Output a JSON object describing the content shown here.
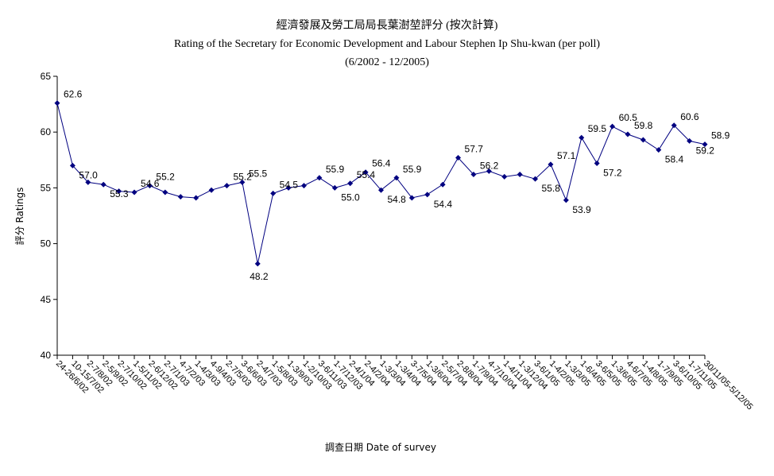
{
  "chart_data": {
    "type": "line",
    "title": "經濟發展及勞工局局長葉澍堃評分 (按次計算)",
    "subtitle": "Rating of the Secretary for Economic Development and Labour Stephen Ip Shu-kwan  (per poll)",
    "period": "(6/2002 - 12/2005)",
    "xlabel": "調查日期 Date of survey",
    "ylabel": "評分 Ratings",
    "ylim": [
      40,
      65
    ],
    "yticks": [
      40,
      45,
      50,
      55,
      60,
      65
    ],
    "grid": false,
    "legend": "none",
    "line_color": "#000080",
    "categories": [
      "24-26/6/02",
      "10-15/7/02",
      "2-7/8/02",
      "2-5/9/02",
      "2-7/10/02",
      "1-5/11/02",
      "2-6/12/02",
      "2-7/1/03",
      "4-7/2/03",
      "1-4/3/03",
      "4-9/4/03",
      "2-7/5/03",
      "3-6/6/03",
      "2-4/7/03",
      "1-5/8/03",
      "1-3/9/03",
      "1-2/10/03",
      "3-6/11/03",
      "1-7/12/03",
      "2-4/1/04",
      "2-4/2/04",
      "1-3/3/04",
      "1-3/4/04",
      "3-7/5/04",
      "1-3/6/04",
      "2-5/7/04",
      "2-8/8/04",
      "1-7/9/04",
      "4-7/10/04",
      "1-4/11/04",
      "1-3/12/04",
      "3-6/1/05",
      "1-4/2/05",
      "1-3/3/05",
      "1-6/4/05",
      "3-6/5/05",
      "1-3/6/05",
      "4-6/7/05",
      "1-4/8/05",
      "1-7/9/05",
      "3-6/10/05",
      "1-7/11/05",
      "30/11/05-5/12/05"
    ],
    "values": [
      62.6,
      57.0,
      55.5,
      55.3,
      54.7,
      54.6,
      55.2,
      54.6,
      54.2,
      54.1,
      54.8,
      55.2,
      55.5,
      48.2,
      54.5,
      55.0,
      55.2,
      55.9,
      55.0,
      55.4,
      56.4,
      54.8,
      55.9,
      54.1,
      54.4,
      55.3,
      57.7,
      56.2,
      56.5,
      56.0,
      56.2,
      55.8,
      57.1,
      53.9,
      59.5,
      57.2,
      60.5,
      59.8,
      59.3,
      58.4,
      60.6,
      59.2,
      58.9
    ],
    "data_labels": [
      {
        "i": 0,
        "text": "62.6"
      },
      {
        "i": 1,
        "text": "57.0"
      },
      {
        "i": 3,
        "text": "55.3"
      },
      {
        "i": 5,
        "text": "54.6"
      },
      {
        "i": 6,
        "text": "55.2"
      },
      {
        "i": 11,
        "text": "55.2"
      },
      {
        "i": 12,
        "text": "55.5"
      },
      {
        "i": 13,
        "text": "48.2"
      },
      {
        "i": 14,
        "text": "54.5"
      },
      {
        "i": 17,
        "text": "55.9"
      },
      {
        "i": 18,
        "text": "55.0"
      },
      {
        "i": 19,
        "text": "55.4"
      },
      {
        "i": 20,
        "text": "56.4"
      },
      {
        "i": 21,
        "text": "54.8"
      },
      {
        "i": 22,
        "text": "55.9"
      },
      {
        "i": 24,
        "text": "54.4"
      },
      {
        "i": 26,
        "text": "57.7"
      },
      {
        "i": 27,
        "text": "56.2"
      },
      {
        "i": 31,
        "text": "55.8"
      },
      {
        "i": 32,
        "text": "57.1"
      },
      {
        "i": 33,
        "text": "53.9"
      },
      {
        "i": 34,
        "text": "59.5"
      },
      {
        "i": 35,
        "text": "57.2"
      },
      {
        "i": 36,
        "text": "60.5"
      },
      {
        "i": 37,
        "text": "59.8"
      },
      {
        "i": 39,
        "text": "58.4"
      },
      {
        "i": 40,
        "text": "60.6"
      },
      {
        "i": 41,
        "text": "59.2"
      },
      {
        "i": 42,
        "text": "58.9"
      }
    ]
  }
}
